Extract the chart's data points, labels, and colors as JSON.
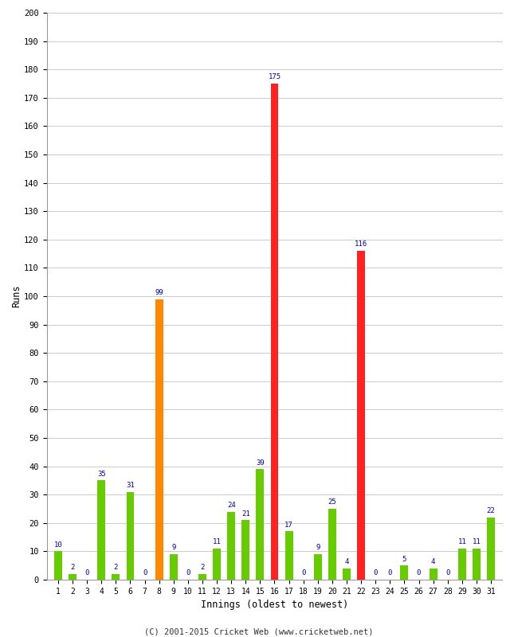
{
  "innings": [
    1,
    2,
    3,
    4,
    5,
    6,
    7,
    8,
    9,
    10,
    11,
    12,
    13,
    14,
    15,
    16,
    17,
    18,
    19,
    20,
    21,
    22,
    23,
    24,
    25,
    26,
    27,
    28,
    29,
    30,
    31
  ],
  "runs": [
    10,
    2,
    0,
    35,
    2,
    31,
    0,
    99,
    9,
    0,
    2,
    11,
    24,
    21,
    39,
    175,
    17,
    0,
    9,
    25,
    4,
    116,
    0,
    0,
    5,
    0,
    4,
    0,
    11,
    11,
    22
  ],
  "colors": [
    "#66cc00",
    "#66cc00",
    "#66cc00",
    "#66cc00",
    "#66cc00",
    "#66cc00",
    "#66cc00",
    "#ff8800",
    "#66cc00",
    "#66cc00",
    "#66cc00",
    "#66cc00",
    "#66cc00",
    "#66cc00",
    "#66cc00",
    "#ff2222",
    "#66cc00",
    "#66cc00",
    "#66cc00",
    "#66cc00",
    "#66cc00",
    "#ff2222",
    "#66cc00",
    "#66cc00",
    "#66cc00",
    "#66cc00",
    "#66cc00",
    "#66cc00",
    "#66cc00",
    "#66cc00",
    "#66cc00"
  ],
  "xlabel": "Innings (oldest to newest)",
  "ylabel": "Runs",
  "ylim": [
    0,
    200
  ],
  "yticks": [
    0,
    10,
    20,
    30,
    40,
    50,
    60,
    70,
    80,
    90,
    100,
    110,
    120,
    130,
    140,
    150,
    160,
    170,
    180,
    190,
    200
  ],
  "label_color": "#0000cc",
  "bg_color": "#ffffff",
  "grid_color": "#cccccc",
  "footer": "(C) 2001-2015 Cricket Web (www.cricketweb.net)"
}
